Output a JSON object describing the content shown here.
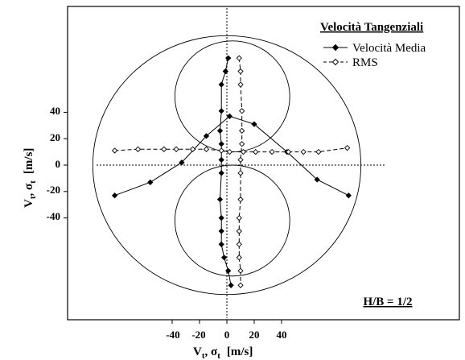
{
  "chart_data": {
    "type": "scatter",
    "title": "",
    "xlabel": "Vt, σt  [m/s]",
    "ylabel": "Vt, σt  [m/s]",
    "xlabel_parts": {
      "v": "V",
      "v_sub": "t",
      "sep": ", ",
      "s": "σ",
      "s_sub": "t",
      "unit": "[m/s]"
    },
    "ylabel_parts": {
      "v": "V",
      "v_sub": "t",
      "sep": ", ",
      "s": "σ",
      "s_sub": "t",
      "unit": "[m/s]"
    },
    "x_ticks": [
      "-40",
      "-20",
      "0",
      "20",
      "40"
    ],
    "y_ticks": [
      "40",
      "20",
      "0",
      "-20",
      "-40"
    ],
    "legend": {
      "title": "Velocità Tangenziali",
      "placement": "top-right",
      "entries": [
        "Velocità Media",
        "RMS"
      ]
    },
    "annotation": "H/B = 1/2",
    "grid": false,
    "xlim": [
      -127,
      165
    ],
    "ylim": [
      -122,
      133
    ],
    "guides": {
      "crosshair": "dotted lines through x=0 and y=0",
      "outer_circle": {
        "cx": 0,
        "cy": 0,
        "r": 98
      },
      "upper_circle": {
        "cx": 4,
        "cy": 52,
        "r": 42
      },
      "lower_circle": {
        "cx": 4,
        "cy": -42,
        "r": 42
      }
    },
    "series": [
      {
        "name": "Velocità Media",
        "marker": "filled-diamond",
        "line": "solid",
        "segments": [
          {
            "x": [
              -82,
              -56,
              -33,
              -15,
              2,
              20,
              44,
              66,
              89
            ],
            "y": [
              -23,
              -13,
              2,
              22,
              37,
              31,
              10,
              -11,
              -23
            ]
          },
          {
            "x": [
              1,
              -1,
              -4,
              -4,
              -5,
              -4,
              -4,
              -4,
              -5,
              -4,
              -4,
              -4,
              -2,
              1,
              3
            ],
            "y": [
              81,
              71,
              61,
              41,
              26,
              16,
              4,
              -6,
              -26,
              -40,
              -50,
              -60,
              -70,
              -80,
              -91
            ]
          }
        ]
      },
      {
        "name": "RMS",
        "marker": "open-diamond",
        "line": "dashed",
        "segments": [
          {
            "x": [
              -82,
              -65,
              -46,
              -37,
              -25,
              -15,
              -4,
              2,
              12,
              21,
              33,
              45,
              56,
              67,
              88
            ],
            "y": [
              11,
              12,
              12,
              12,
              12,
              12,
              11,
              10,
              10,
              10,
              10,
              10,
              10,
              10,
              13
            ]
          },
          {
            "x": [
              9,
              10,
              10,
              11,
              11,
              11,
              10,
              10,
              10,
              9,
              9,
              9,
              9,
              10,
              10
            ],
            "y": [
              81,
              71,
              61,
              41,
              26,
              16,
              4,
              -6,
              -26,
              -40,
              -50,
              -60,
              -70,
              -80,
              -91
            ]
          }
        ]
      }
    ]
  }
}
